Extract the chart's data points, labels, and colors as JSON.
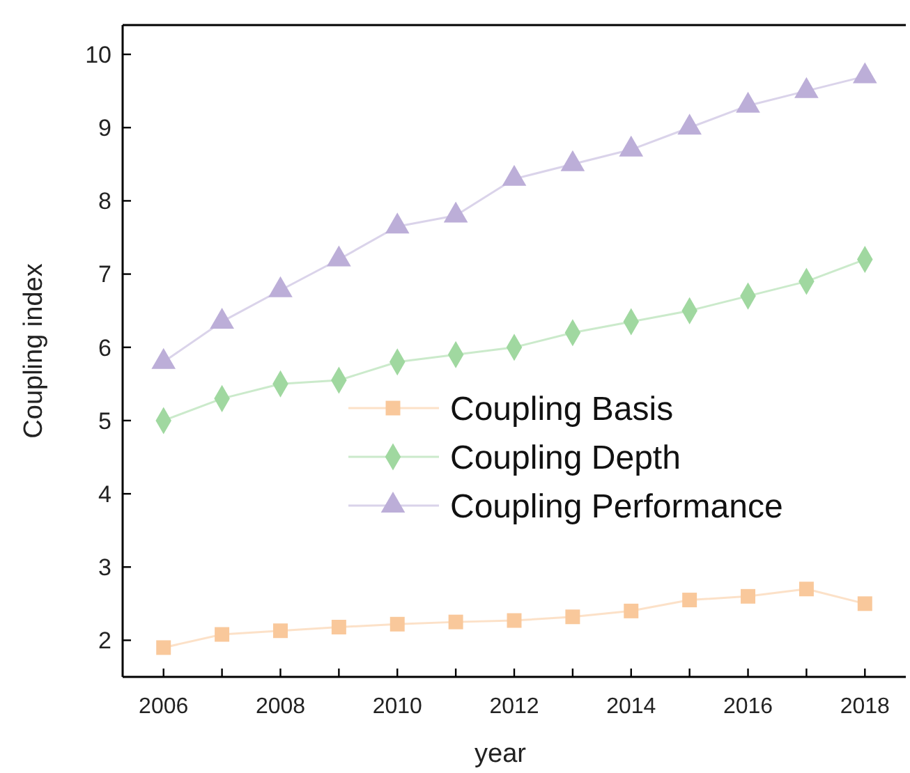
{
  "chart_data": {
    "type": "line",
    "xlabel": "year",
    "ylabel": "Coupling index",
    "x": [
      2006,
      2007,
      2008,
      2009,
      2010,
      2011,
      2012,
      2013,
      2014,
      2015,
      2016,
      2017,
      2018
    ],
    "series": [
      {
        "name": "Coupling Basis",
        "color": "#f9c89b",
        "marker": "square",
        "values": [
          1.9,
          2.08,
          2.13,
          2.18,
          2.22,
          2.25,
          2.27,
          2.32,
          2.4,
          2.55,
          2.6,
          2.7,
          2.5
        ]
      },
      {
        "name": "Coupling Depth",
        "color": "#a0d8a0",
        "marker": "diamond",
        "values": [
          5.0,
          5.3,
          5.5,
          5.55,
          5.8,
          5.9,
          6.0,
          6.2,
          6.35,
          6.5,
          6.7,
          6.9,
          7.2
        ]
      },
      {
        "name": "Coupling Performance",
        "color": "#bcaed8",
        "marker": "triangle",
        "values": [
          5.8,
          6.35,
          6.78,
          7.2,
          7.65,
          7.8,
          8.3,
          8.5,
          8.7,
          9.0,
          9.3,
          9.5,
          9.7
        ]
      }
    ],
    "xlim": [
      2005.3,
      2018.7
    ],
    "xticks": [
      2006,
      {
        "value": 2007,
        "label": null
      },
      2008,
      {
        "value": 2009,
        "label": null
      },
      2010,
      {
        "value": 2011,
        "label": null
      },
      2012,
      {
        "value": 2013,
        "label": null
      },
      2014,
      {
        "value": 2015,
        "label": null
      },
      2016,
      {
        "value": 2017,
        "label": null
      },
      2018
    ],
    "ylim": [
      1.5,
      10.4
    ],
    "yticks": [
      2,
      3,
      4,
      5,
      6,
      7,
      8,
      9,
      10
    ],
    "legend": "center",
    "grid": false
  }
}
